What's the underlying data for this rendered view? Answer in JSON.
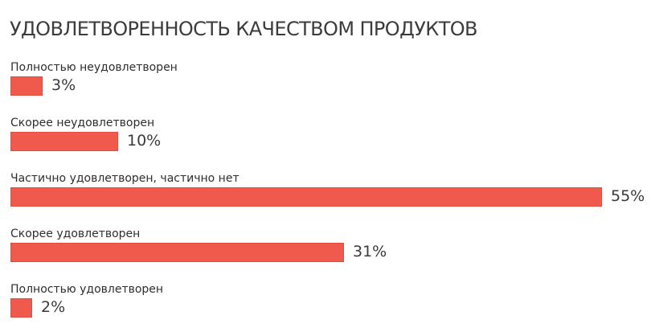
{
  "chart_data": {
    "type": "bar",
    "orientation": "horizontal",
    "title": "УДОВЛЕТВОРЕННОСТЬ  КАЧЕСТВОМ ПРОДУКТОВ",
    "categories": [
      "Полностью неудовлетворен",
      "Скорее неудовлетворен",
      "Частично удовлетворен, частично нет",
      "Скорее удовлетворен",
      "Полностью удовлетворен"
    ],
    "values": [
      3,
      10,
      55,
      31,
      2
    ],
    "value_labels": [
      "3%",
      "10%",
      "55%",
      "31%",
      "2%"
    ],
    "unit": "%",
    "xlim": [
      0,
      55
    ],
    "grid": false,
    "legend": "none",
    "bar_color": "#ef5a4c"
  }
}
